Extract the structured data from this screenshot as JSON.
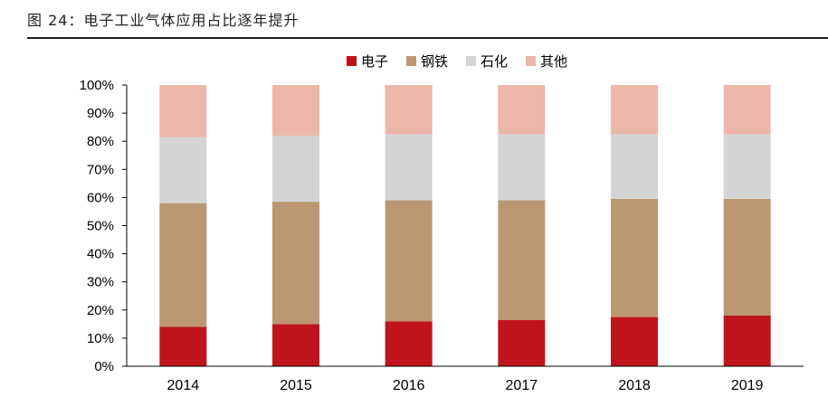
{
  "figure_title": "图 24：电子工业气体应用占比逐年提升",
  "chart_data": {
    "type": "bar",
    "stacked": true,
    "categories": [
      "2014",
      "2015",
      "2016",
      "2017",
      "2018",
      "2019"
    ],
    "series": [
      {
        "name": "电子",
        "color": "#c0141c",
        "values": [
          14,
          15,
          16,
          16.5,
          17.5,
          18
        ]
      },
      {
        "name": "钢铁",
        "color": "#bb9872",
        "values": [
          44,
          43.5,
          43,
          42.5,
          42,
          41.5
        ]
      },
      {
        "name": "石化",
        "color": "#d4d4d4",
        "values": [
          23.5,
          23.5,
          23.5,
          23.5,
          23,
          23
        ]
      },
      {
        "name": "其他",
        "color": "#edb6ab",
        "values": [
          18.5,
          18,
          17.5,
          17.5,
          17.5,
          17.5
        ]
      }
    ],
    "ylim": [
      0,
      100
    ],
    "y_ticks": [
      "0%",
      "10%",
      "20%",
      "30%",
      "40%",
      "50%",
      "60%",
      "70%",
      "80%",
      "90%",
      "100%"
    ],
    "legend_position": "top",
    "grid": false
  }
}
